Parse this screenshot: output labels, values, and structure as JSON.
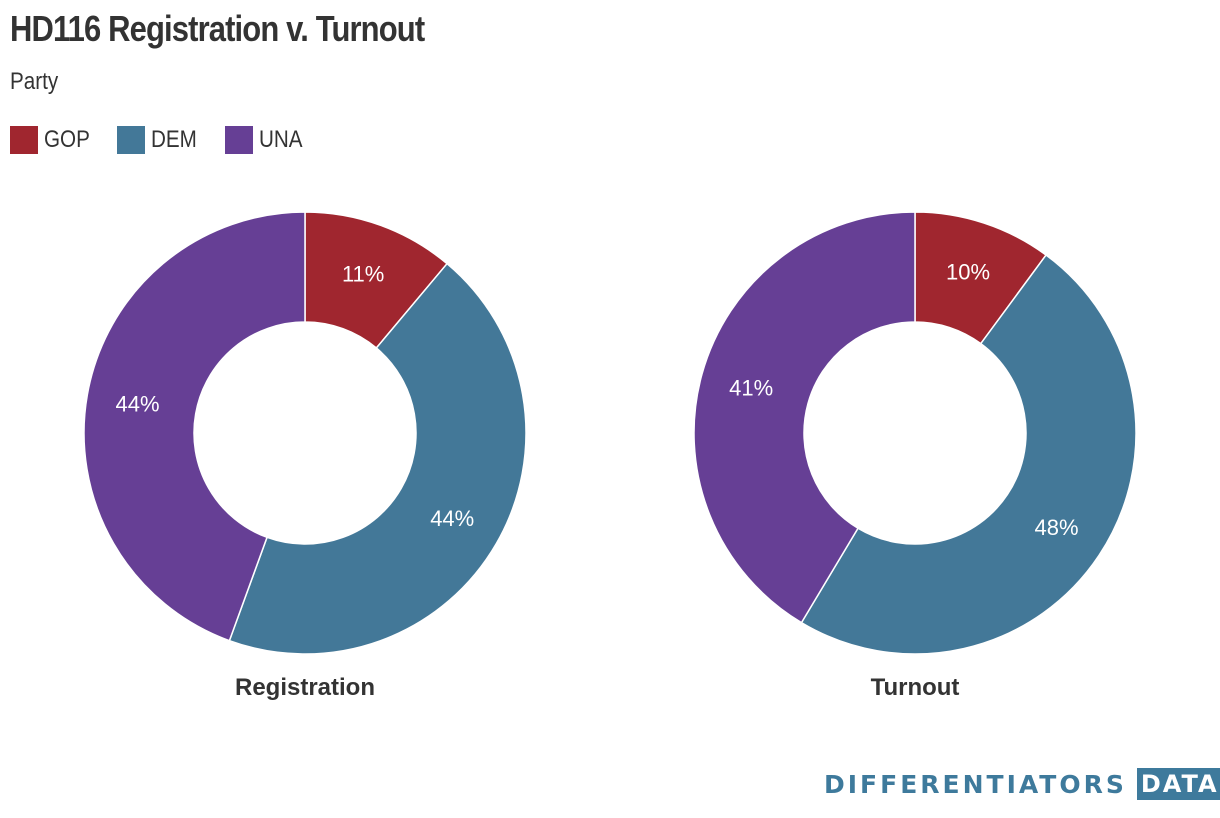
{
  "title": "HD116 Registration v. Turnout",
  "subtitle": "Party",
  "legend": [
    {
      "label": "GOP",
      "color": "#a0262f"
    },
    {
      "label": "DEM",
      "color": "#437898"
    },
    {
      "label": "UNA",
      "color": "#663f95"
    }
  ],
  "chart_data": [
    {
      "type": "pie",
      "title": "Registration",
      "categories": [
        "GOP",
        "DEM",
        "UNA"
      ],
      "values": [
        11,
        44,
        44
      ],
      "labels": [
        "11%",
        "44%",
        "44%"
      ],
      "colors": [
        "#a0262f",
        "#437898",
        "#663f95"
      ],
      "donut": true
    },
    {
      "type": "pie",
      "title": "Turnout",
      "categories": [
        "GOP",
        "DEM",
        "UNA"
      ],
      "values": [
        10,
        48,
        41
      ],
      "labels": [
        "10%",
        "48%",
        "41%"
      ],
      "colors": [
        "#a0262f",
        "#437898",
        "#663f95"
      ],
      "donut": true
    }
  ],
  "branding": {
    "name": "DIFFERENTIATORS",
    "tag": "DATA"
  }
}
